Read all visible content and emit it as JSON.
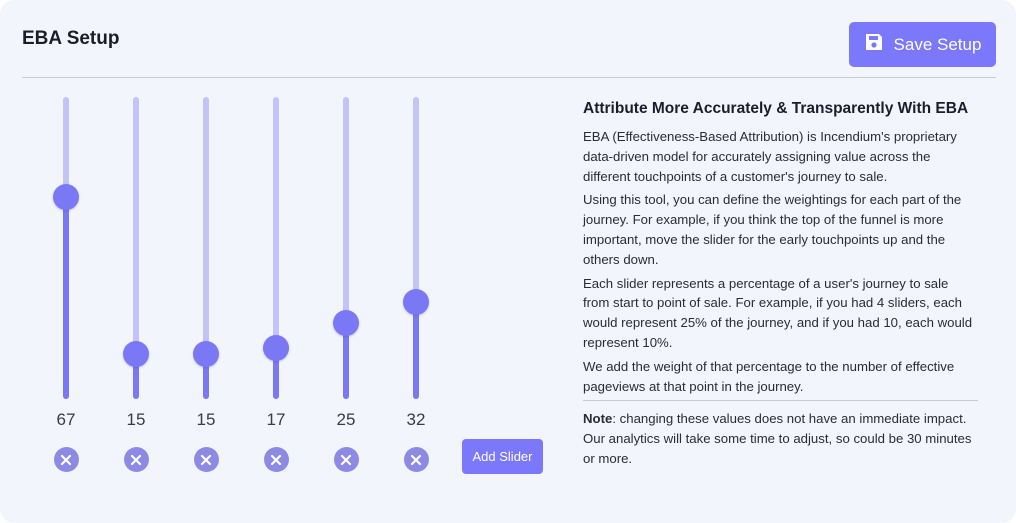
{
  "header": {
    "title": "EBA Setup",
    "save_label": "Save Setup",
    "save_icon": "floppy-disk-icon"
  },
  "colors": {
    "accent": "#7b78fc",
    "track": "#c4c3f8",
    "background": "#f3f5fd"
  },
  "sliders": {
    "max": 100,
    "items": [
      {
        "value": "67",
        "level": 67
      },
      {
        "value": "15",
        "level": 15
      },
      {
        "value": "15",
        "level": 15
      },
      {
        "value": "17",
        "level": 17
      },
      {
        "value": "25",
        "level": 25
      },
      {
        "value": "32",
        "level": 32
      }
    ],
    "remove_icon": "x-circle-icon",
    "add_label": "Add Slider"
  },
  "info": {
    "heading": "Attribute More Accurately & Transparently With EBA",
    "paragraphs": [
      "EBA (Effectiveness-Based Attribution) is Incendium's proprietary data-driven model for accurately assigning value across the different touchpoints of a customer's journey to sale.",
      "Using this tool, you can define the weightings for each part of the journey. For example, if you think the top of the funnel is more important, move the slider for the early touchpoints up and the others down.",
      "Each slider represents a percentage of a user's journey to sale from start to point of sale. For example, if you had 4 sliders, each would represent 25% of the journey, and if you had 10, each would represent 10%.",
      "We add the weight of that percentage to the number of effective pageviews at that point in the journey."
    ],
    "note_label": "Note",
    "note_text": ": changing these values does not have an immediate impact. Our analytics will take some time to adjust, so could be 30 minutes or more."
  }
}
